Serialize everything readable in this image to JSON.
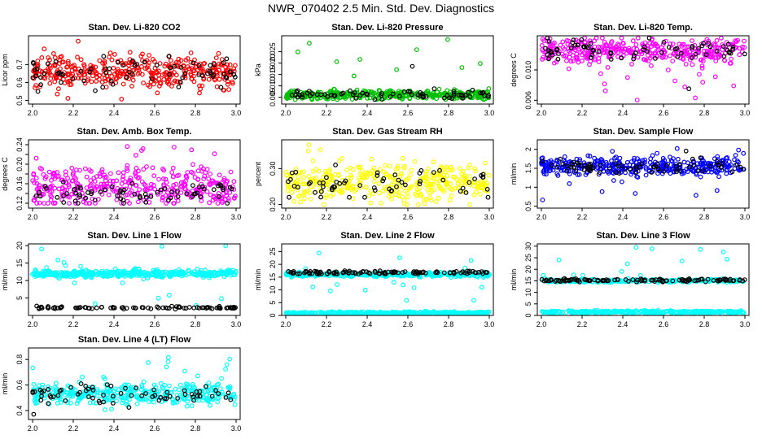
{
  "page_title": "NWR_070402  2.5 Min. Std. Dev. Diagnostics",
  "chart_data": [
    {
      "type": "scatter",
      "title": "Stan. Dev. Li-820 CO2",
      "ylabel": "Licor ppm",
      "xlim": [
        1.98,
        3.02
      ],
      "ylim": [
        0.48,
        0.86
      ],
      "xticks": [
        2.0,
        2.2,
        2.4,
        2.6,
        2.8,
        3.0
      ],
      "xticklabels": [
        "2.0",
        "2.2",
        "2.4",
        "2.6",
        "2.8",
        "3.0"
      ],
      "yticks": [
        0.5,
        0.6,
        0.7
      ],
      "yticklabels": [
        "0.5",
        "0.6",
        "0.7"
      ],
      "series": [
        {
          "name": "main",
          "color": "#ff0000",
          "n": 380,
          "mean": 0.66,
          "spread": 0.045,
          "min": 0.5,
          "max": 0.84
        },
        {
          "name": "black",
          "color": "#000000",
          "n": 70,
          "mean": 0.65,
          "spread": 0.04,
          "min": 0.55,
          "max": 0.84
        }
      ]
    },
    {
      "type": "scatter",
      "title": "Stan. Dev. Li-820 Pressure",
      "ylabel": "kPa",
      "xlim": [
        1.98,
        3.02
      ],
      "ylim": [
        0.002,
        0.032
      ],
      "xticks": [
        2.0,
        2.2,
        2.4,
        2.6,
        2.8,
        3.0
      ],
      "xticklabels": [
        "2.0",
        "2.2",
        "2.4",
        "2.6",
        "2.8",
        "3.0"
      ],
      "yticks": [
        0.005,
        0.01,
        0.015,
        0.02,
        0.025
      ],
      "yticklabels": [
        "0.005",
        "0.010",
        "0.015",
        "0.020",
        "0.025"
      ],
      "series": [
        {
          "name": "main",
          "color": "#00c000",
          "n": 380,
          "mean": 0.006,
          "spread": 0.001,
          "min": 0.004,
          "max": 0.031
        },
        {
          "name": "black",
          "color": "#000000",
          "n": 70,
          "mean": 0.006,
          "spread": 0.001,
          "min": 0.004,
          "max": 0.02
        }
      ]
    },
    {
      "type": "scatter",
      "title": "Stan. Dev. Li-820 Temp.",
      "ylabel": "degrees C",
      "xlim": [
        1.98,
        3.02
      ],
      "ylim": [
        0.0055,
        0.0145
      ],
      "xticks": [
        2.0,
        2.2,
        2.4,
        2.6,
        2.8,
        3.0
      ],
      "xticklabels": [
        "2.0",
        "2.2",
        "2.4",
        "2.6",
        "2.8",
        "3.0"
      ],
      "yticks": [
        0.006,
        0.01
      ],
      "yticklabels": [
        "0.006",
        "0.010"
      ],
      "series": [
        {
          "name": "main",
          "color": "#ff00ff",
          "n": 380,
          "mean": 0.0125,
          "spread": 0.0008,
          "min": 0.006,
          "max": 0.0142
        },
        {
          "name": "black",
          "color": "#000000",
          "n": 70,
          "mean": 0.0125,
          "spread": 0.0008,
          "min": 0.007,
          "max": 0.0142
        }
      ]
    },
    {
      "type": "scatter",
      "title": "Stan. Dev. Amb. Box Temp.",
      "ylabel": "degrees C",
      "xlim": [
        1.98,
        3.02
      ],
      "ylim": [
        0.11,
        0.25
      ],
      "xticks": [
        2.0,
        2.2,
        2.4,
        2.6,
        2.8,
        3.0
      ],
      "xticklabels": [
        "2.0",
        "2.2",
        "2.4",
        "2.6",
        "2.8",
        "3.0"
      ],
      "yticks": [
        0.12,
        0.14,
        0.16,
        0.18,
        0.2,
        0.22,
        0.24
      ],
      "yticklabels": [
        "0.12",
        "",
        "0.16",
        "",
        "0.20",
        "",
        "0.24"
      ],
      "series": [
        {
          "name": "main",
          "color": "#ff00ff",
          "n": 380,
          "mean": 0.155,
          "spread": 0.02,
          "min": 0.12,
          "max": 0.24
        },
        {
          "name": "black",
          "color": "#000000",
          "n": 70,
          "mean": 0.14,
          "spread": 0.012,
          "min": 0.12,
          "max": 0.18
        }
      ]
    },
    {
      "type": "scatter",
      "title": "Stan. Dev. Gas Stream RH",
      "ylabel": "percent",
      "xlim": [
        1.98,
        3.02
      ],
      "ylim": [
        0.19,
        0.38
      ],
      "xticks": [
        2.0,
        2.2,
        2.4,
        2.6,
        2.8,
        3.0
      ],
      "xticklabels": [
        "2.0",
        "2.2",
        "2.4",
        "2.6",
        "2.8",
        "3.0"
      ],
      "yticks": [
        0.2,
        0.3
      ],
      "yticklabels": [
        "0.20",
        "0.30"
      ],
      "series": [
        {
          "name": "main",
          "color": "#ffff00",
          "n": 380,
          "mean": 0.26,
          "spread": 0.025,
          "min": 0.2,
          "max": 0.37
        },
        {
          "name": "black",
          "color": "#000000",
          "n": 60,
          "mean": 0.255,
          "spread": 0.02,
          "min": 0.22,
          "max": 0.31
        }
      ]
    },
    {
      "type": "scatter",
      "title": "Stan. Dev. Sample Flow",
      "ylabel": "ml/min",
      "xlim": [
        1.98,
        3.02
      ],
      "ylim": [
        0.45,
        2.25
      ],
      "xticks": [
        2.0,
        2.2,
        2.4,
        2.6,
        2.8,
        3.0
      ],
      "xticklabels": [
        "2.0",
        "2.2",
        "2.4",
        "2.6",
        "2.8",
        "3.0"
      ],
      "yticks": [
        0.5,
        1.0,
        1.5,
        2.0
      ],
      "yticklabels": [
        "0.5",
        "1",
        "1.5",
        "2"
      ],
      "series": [
        {
          "name": "main",
          "color": "#0000ff",
          "n": 380,
          "mean": 1.55,
          "spread": 0.12,
          "min": 0.55,
          "max": 2.2
        },
        {
          "name": "black",
          "color": "#000000",
          "n": 70,
          "mean": 1.55,
          "spread": 0.08,
          "min": 1.3,
          "max": 2.0
        }
      ]
    },
    {
      "type": "scatter",
      "title": "Stan. Dev. Line 1 Flow",
      "ylabel": "ml/min",
      "xlim": [
        1.98,
        3.02
      ],
      "ylim": [
        0,
        20.5
      ],
      "xticks": [
        2.0,
        2.2,
        2.4,
        2.6,
        2.8,
        3.0
      ],
      "xticklabels": [
        "2.0",
        "2.2",
        "2.4",
        "2.6",
        "2.8",
        "3.0"
      ],
      "yticks": [
        5,
        10,
        15,
        20
      ],
      "yticklabels": [
        "5",
        "10",
        "15",
        "20"
      ],
      "series": [
        {
          "name": "main",
          "color": "#00ffff",
          "n": 420,
          "mean": 12.0,
          "spread": 0.5,
          "min": 2,
          "max": 20
        },
        {
          "name": "black",
          "color": "#000000",
          "n": 90,
          "mean": 2.2,
          "spread": 0.15,
          "min": 1.8,
          "max": 2.8
        }
      ]
    },
    {
      "type": "scatter",
      "title": "Stan. Dev. Line 2 Flow",
      "ylabel": "ml/min",
      "xlim": [
        1.98,
        3.02
      ],
      "ylim": [
        0,
        28
      ],
      "xticks": [
        2.0,
        2.2,
        2.4,
        2.6,
        2.8,
        3.0
      ],
      "xticklabels": [
        "2.0",
        "2.2",
        "2.4",
        "2.6",
        "2.8",
        "3.0"
      ],
      "yticks": [
        0,
        5,
        10,
        15,
        20,
        25
      ],
      "yticklabels": [
        "0",
        "5",
        "10",
        "15",
        "20",
        "25"
      ],
      "series": [
        {
          "name": "main",
          "color": "#00ffff",
          "n": 420,
          "mean": 16.0,
          "spread": 0.4,
          "min": 0.5,
          "max": 27
        },
        {
          "name": "cyan-low",
          "color": "#00ffff",
          "n": 300,
          "mean": 1.0,
          "spread": 0.2,
          "min": 0.5,
          "max": 2
        },
        {
          "name": "black",
          "color": "#000000",
          "n": 110,
          "mean": 16.8,
          "spread": 0.3,
          "min": 16,
          "max": 18
        }
      ]
    },
    {
      "type": "scatter",
      "title": "Stan. Dev. Line 3 Flow",
      "ylabel": "ml/min",
      "xlim": [
        1.98,
        3.02
      ],
      "ylim": [
        0,
        31
      ],
      "xticks": [
        2.0,
        2.2,
        2.4,
        2.6,
        2.8,
        3.0
      ],
      "xticklabels": [
        "2.0",
        "2.2",
        "2.4",
        "2.6",
        "2.8",
        "3.0"
      ],
      "yticks": [
        0,
        5,
        10,
        15,
        20,
        25,
        30
      ],
      "yticklabels": [
        "0",
        "5",
        "10",
        "15",
        "20",
        "25",
        "30"
      ],
      "series": [
        {
          "name": "main",
          "color": "#00ffff",
          "n": 300,
          "mean": 15.0,
          "spread": 0.3,
          "min": 14,
          "max": 30
        },
        {
          "name": "cyan-low",
          "color": "#00ffff",
          "n": 350,
          "mean": 1.5,
          "spread": 0.25,
          "min": 0.8,
          "max": 2.5
        },
        {
          "name": "black",
          "color": "#000000",
          "n": 110,
          "mean": 15.2,
          "spread": 0.3,
          "min": 14.5,
          "max": 16
        }
      ]
    },
    {
      "type": "scatter",
      "title": "Stan. Dev. Line 4 (LT) Flow",
      "ylabel": "ml/min",
      "xlim": [
        1.98,
        3.02
      ],
      "ylim": [
        0.33,
        0.89
      ],
      "xticks": [
        2.0,
        2.2,
        2.4,
        2.6,
        2.8,
        3.0
      ],
      "xticklabels": [
        "2.0",
        "2.2",
        "2.4",
        "2.6",
        "2.8",
        "3.0"
      ],
      "yticks": [
        0.4,
        0.6,
        0.8
      ],
      "yticklabels": [
        "0.4",
        "0.6",
        "0.8"
      ],
      "series": [
        {
          "name": "main",
          "color": "#00ffff",
          "n": 380,
          "mean": 0.53,
          "spread": 0.04,
          "min": 0.36,
          "max": 0.87
        },
        {
          "name": "black",
          "color": "#000000",
          "n": 70,
          "mean": 0.52,
          "spread": 0.04,
          "min": 0.35,
          "max": 0.65
        }
      ]
    }
  ]
}
